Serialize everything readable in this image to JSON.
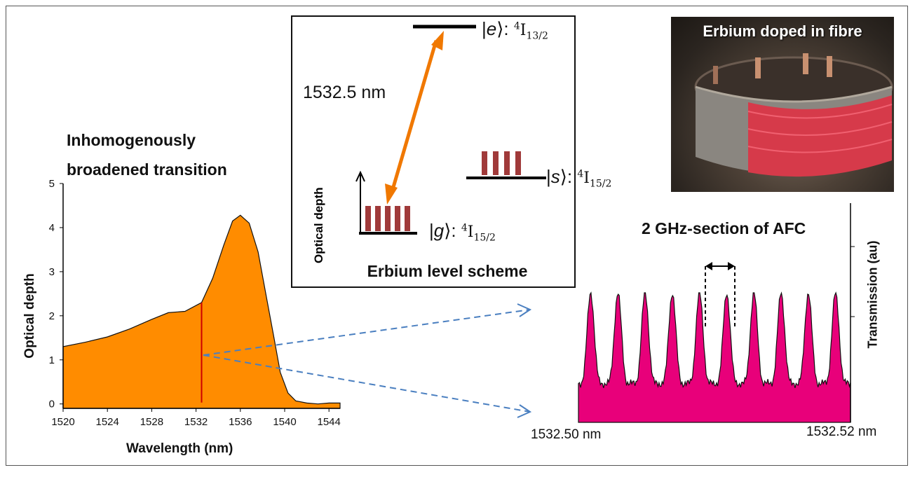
{
  "left_chart": {
    "title_line1": "Inhomogenously",
    "title_line2": "broadened transition",
    "xlabel": "Wavelength (nm)",
    "ylabel": "Optical depth",
    "x_ticks": [
      "1520",
      "1524",
      "1528",
      "1532",
      "1536",
      "1540",
      "1544"
    ],
    "y_ticks": [
      "0",
      "1",
      "2",
      "3",
      "4",
      "5"
    ],
    "fill_color": "#ff8c00",
    "marker_color": "#cc0000",
    "marker_x": 1532.5
  },
  "scheme": {
    "caption": "Erbium level scheme",
    "transition_label": "1532.5 nm",
    "e_state": "e",
    "e_term": "4I13/2",
    "s_state": "s",
    "s_term": "4I15/2",
    "g_state": "g",
    "g_term": "4I15/2",
    "inset_ylabel": "Optical depth",
    "arrow_color": "#f07800",
    "peak_color": "#a03a3a"
  },
  "photo": {
    "title": "Erbium doped in fibre"
  },
  "right_chart": {
    "title": "2 GHz-section of AFC",
    "ylabel": "Transmission (au)",
    "x_left_label": "1532.50 nm",
    "x_right_label": "1532.52 nm",
    "fill_color": "#e8007a"
  },
  "chart_data": [
    {
      "type": "area",
      "title": "Inhomogenously broadened transition",
      "xlabel": "Wavelength (nm)",
      "ylabel": "Optical depth",
      "xlim": [
        1520,
        1545
      ],
      "ylim": [
        -0.1,
        5
      ],
      "x": [
        1520,
        1522,
        1524,
        1526,
        1528,
        1529.5,
        1531,
        1532.5,
        1533.5,
        1534.5,
        1535.3,
        1536,
        1536.8,
        1537.6,
        1538.3,
        1539,
        1539.6,
        1540.3,
        1541,
        1542,
        1543,
        1544,
        1545
      ],
      "values": [
        1.3,
        1.4,
        1.52,
        1.7,
        1.92,
        2.07,
        2.1,
        2.3,
        2.85,
        3.6,
        4.15,
        4.28,
        4.1,
        3.45,
        2.5,
        1.55,
        0.72,
        0.25,
        0.07,
        0.02,
        0.0,
        0.02,
        0.02
      ]
    },
    {
      "type": "area",
      "title": "2 GHz-section of AFC",
      "ylabel": "Transmission (au)",
      "xlim": [
        1532.5,
        1532.52
      ],
      "peaks": 10,
      "x_labels": [
        "1532.50 nm",
        "1532.52 nm"
      ]
    }
  ]
}
